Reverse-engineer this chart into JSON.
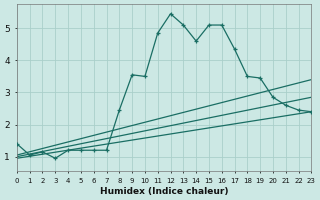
{
  "xlabel": "Humidex (Indice chaleur)",
  "ylabel": "",
  "bg_color": "#cce8e4",
  "line_color": "#1a6e64",
  "grid_color": "#aacfca",
  "xmin": 0,
  "xmax": 23,
  "ymin": 0.55,
  "ymax": 5.75,
  "yticks": [
    1,
    2,
    3,
    4,
    5
  ],
  "main_series": {
    "x": [
      0,
      1,
      2,
      3,
      4,
      5,
      6,
      7,
      8,
      9,
      10,
      11,
      12,
      13,
      14,
      15,
      16,
      17,
      18,
      19,
      20,
      21,
      22,
      23
    ],
    "y": [
      1.4,
      1.05,
      1.15,
      0.95,
      1.2,
      1.2,
      1.2,
      1.2,
      2.45,
      3.55,
      3.5,
      4.85,
      5.45,
      5.1,
      4.6,
      5.1,
      5.1,
      4.35,
      3.5,
      3.45,
      2.85,
      2.6,
      2.45,
      2.4
    ]
  },
  "smooth_lines": [
    {
      "x": [
        0,
        23
      ],
      "y": [
        1.05,
        3.4
      ]
    },
    {
      "x": [
        0,
        23
      ],
      "y": [
        1.0,
        2.85
      ]
    },
    {
      "x": [
        0,
        23
      ],
      "y": [
        0.95,
        2.4
      ]
    }
  ]
}
